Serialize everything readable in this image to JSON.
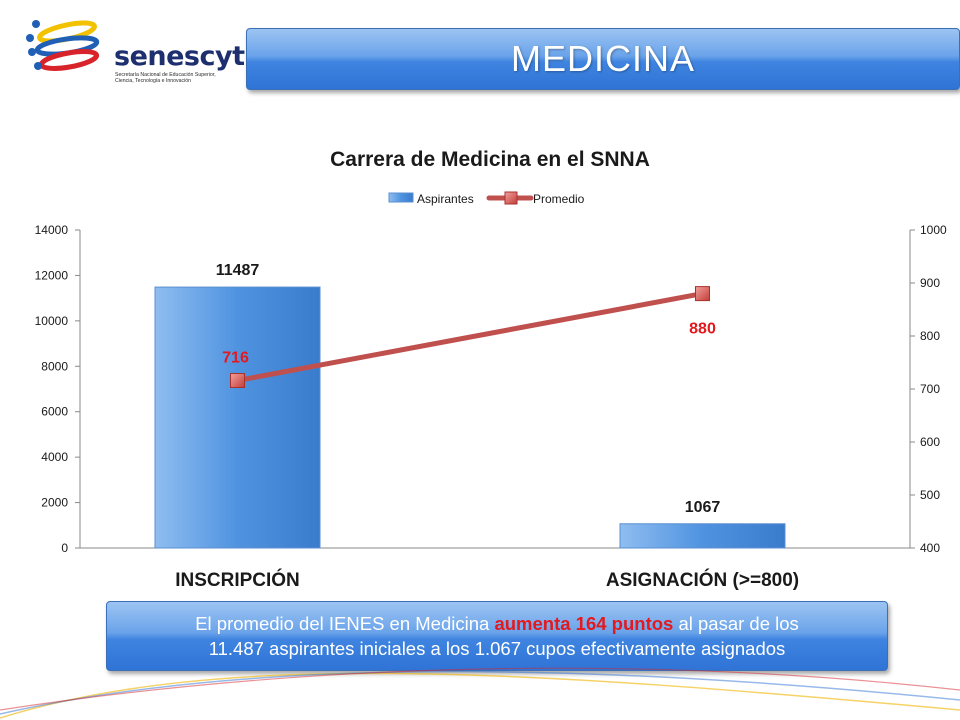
{
  "header": {
    "logo_name": "senescyt",
    "logo_line1": "Secretaría Nacional de Educación Superior,",
    "logo_line2": "Ciencia, Tecnología e Innovación",
    "title": "MEDICINA"
  },
  "chart_data": {
    "type": "bar",
    "title": "Carrera de Medicina en el SNNA",
    "categories": [
      "INSCRIPCIÓN",
      "ASIGNACIÓN (>=800)"
    ],
    "series": [
      {
        "name": "Aspirantes",
        "type": "bar",
        "axis": "left",
        "values": [
          11487,
          1067
        ],
        "color": "#5b9bd5"
      },
      {
        "name": "Promedio",
        "type": "line",
        "axis": "right",
        "values": [
          716,
          880
        ],
        "color": "#c0504d"
      }
    ],
    "y_left": {
      "min": 0,
      "max": 14000,
      "ticks": [
        "0",
        "2000",
        "4000",
        "6000",
        "8000",
        "10000",
        "12000",
        "14000"
      ]
    },
    "y_right": {
      "min": 400,
      "max": 1000,
      "ticks": [
        "400",
        "500",
        "600",
        "700",
        "800",
        "900",
        "1000"
      ]
    },
    "bar_labels": [
      "11487",
      "1067"
    ],
    "line_labels": [
      "716",
      "880"
    ],
    "legend": {
      "position": "top",
      "items": [
        "Aspirantes",
        "Promedio"
      ]
    },
    "grid": false
  },
  "callout": {
    "line1_pre": "El promedio del IENES en Medicina ",
    "line1_hl": "aumenta 164 puntos",
    "line1_post": " al pasar de los",
    "line2": "11.487 aspirantes iniciales a los 1.067 cupos efectivamente asignados"
  }
}
